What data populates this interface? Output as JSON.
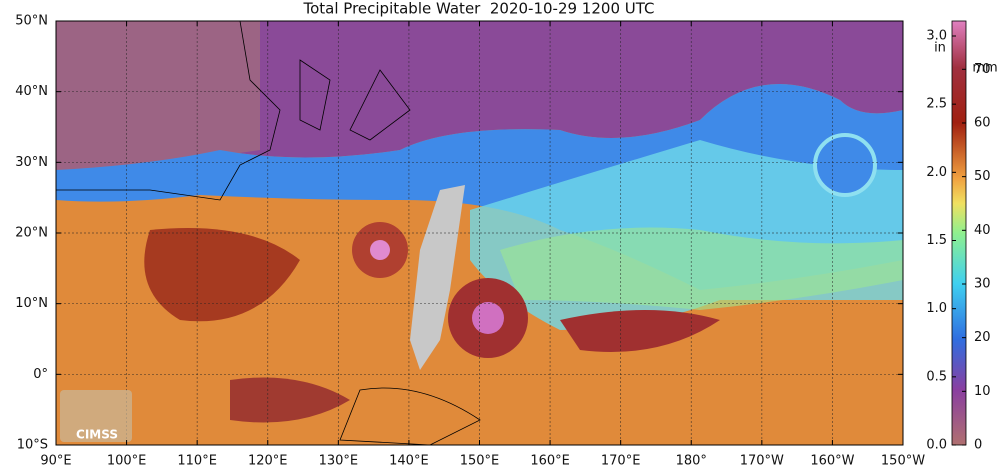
{
  "title": "Total Precipitable Water  2020-10-29 1200 UTC",
  "map": {
    "lonlim": [
      90,
      210
    ],
    "latlim": [
      -10,
      50
    ],
    "lon_ticks": [
      {
        "value": 90,
        "label": "90°E"
      },
      {
        "value": 100,
        "label": "100°E"
      },
      {
        "value": 110,
        "label": "110°E"
      },
      {
        "value": 120,
        "label": "120°E"
      },
      {
        "value": 130,
        "label": "130°E"
      },
      {
        "value": 140,
        "label": "140°E"
      },
      {
        "value": 150,
        "label": "150°E"
      },
      {
        "value": 160,
        "label": "160°E"
      },
      {
        "value": 170,
        "label": "170°E"
      },
      {
        "value": 180,
        "label": "180°"
      },
      {
        "value": 190,
        "label": "170°W"
      },
      {
        "value": 200,
        "label": "160°W"
      },
      {
        "value": 210,
        "label": "150°W"
      }
    ],
    "lat_ticks": [
      {
        "value": -10,
        "label": "10°S"
      },
      {
        "value": 0,
        "label": "0°"
      },
      {
        "value": 10,
        "label": "10°N"
      },
      {
        "value": 20,
        "label": "20°N"
      },
      {
        "value": 30,
        "label": "30°N"
      },
      {
        "value": 40,
        "label": "40°N"
      },
      {
        "value": 50,
        "label": "50°N"
      }
    ]
  },
  "colorbar": {
    "in_label": "in",
    "mm_label": "mm",
    "in_lim": [
      0,
      3.11
    ],
    "mm_lim": [
      0,
      79
    ],
    "in_ticks": [
      {
        "value": 0,
        "label": "0.0"
      },
      {
        "value": 0.5,
        "label": "0.5"
      },
      {
        "value": 1,
        "label": "1.0"
      },
      {
        "value": 1.5,
        "label": "1.5"
      },
      {
        "value": 2,
        "label": "2.0"
      },
      {
        "value": 2.5,
        "label": "2.5"
      },
      {
        "value": 3,
        "label": "3.0"
      }
    ],
    "mm_ticks": [
      0,
      10,
      20,
      30,
      40,
      50,
      60,
      70
    ]
  },
  "logo_text": "CIMSS"
}
